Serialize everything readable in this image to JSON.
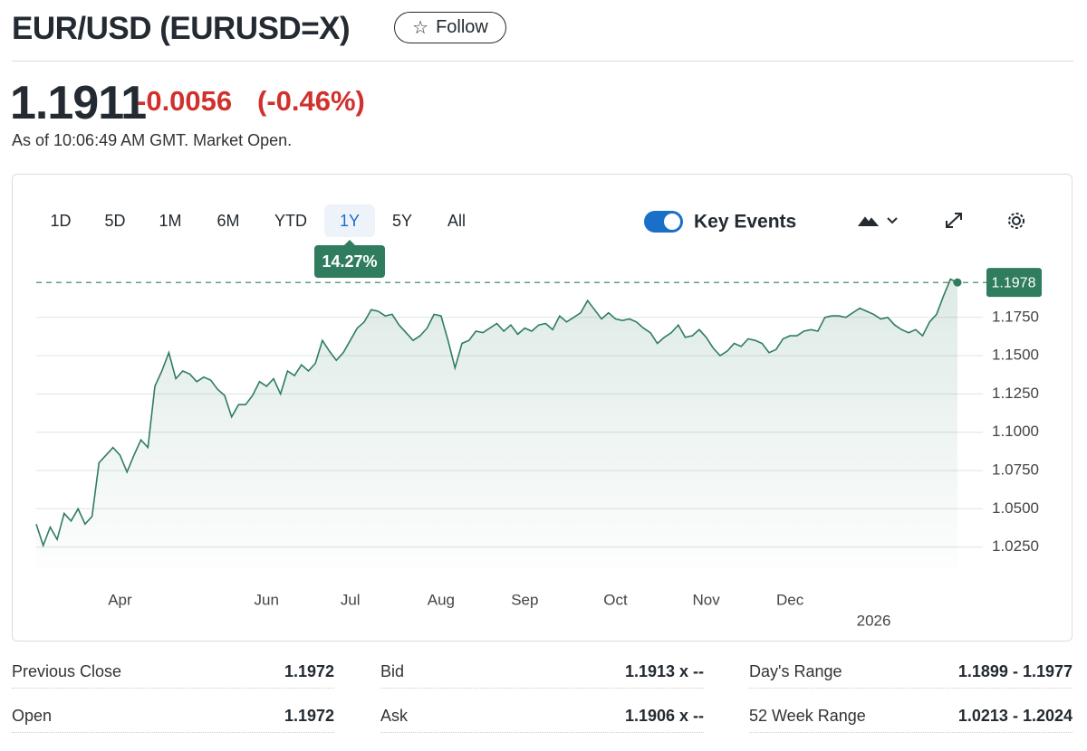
{
  "header": {
    "title": "EUR/USD (EURUSD=X)",
    "follow": "Follow"
  },
  "quote": {
    "price": "1.1911",
    "change": "-0.0056",
    "change_percent": "(-0.46%)",
    "as_of": "As of 10:06:49 AM GMT. Market Open."
  },
  "tabs": {
    "items": [
      "1D",
      "5D",
      "1M",
      "6M",
      "YTD",
      "1Y",
      "5Y",
      "All"
    ],
    "active": 5,
    "period_change": "14.27%"
  },
  "key_events": {
    "label": "Key Events",
    "on": true
  },
  "chart_data": {
    "type": "line",
    "categories": [
      null,
      null,
      null,
      null,
      null,
      null,
      null,
      null,
      null,
      null,
      null,
      null,
      "Apr",
      null,
      null,
      null,
      null,
      null,
      null,
      null,
      null,
      null,
      null,
      null,
      null,
      null,
      null,
      null,
      null,
      null,
      null,
      null,
      null,
      "Jun",
      null,
      null,
      null,
      null,
      null,
      null,
      null,
      null,
      null,
      null,
      null,
      "Jul",
      null,
      null,
      null,
      null,
      null,
      null,
      null,
      null,
      null,
      null,
      null,
      null,
      "Aug",
      null,
      null,
      null,
      null,
      null,
      null,
      null,
      null,
      null,
      null,
      null,
      "Sep",
      null,
      null,
      null,
      null,
      null,
      null,
      null,
      null,
      null,
      null,
      null,
      null,
      "Oct",
      null,
      null,
      null,
      null,
      null,
      null,
      null,
      null,
      null,
      null,
      null,
      null,
      "Nov",
      null,
      null,
      null,
      null,
      null,
      null,
      null,
      null,
      null,
      null,
      null,
      "Dec",
      null,
      null,
      null,
      null,
      null,
      null,
      null,
      null,
      null,
      null,
      null,
      "2026",
      null,
      null,
      null,
      null,
      null,
      null,
      null,
      null,
      null,
      null,
      null,
      null
    ],
    "series": [
      {
        "color": "#2f7d5e",
        "values": [
          1.04,
          1.026,
          1.038,
          1.03,
          1.047,
          1.042,
          1.05,
          1.04,
          1.045,
          1.08,
          1.085,
          1.09,
          1.085,
          1.074,
          1.085,
          1.095,
          1.09,
          1.13,
          1.14,
          1.152,
          1.135,
          1.14,
          1.138,
          1.133,
          1.136,
          1.134,
          1.128,
          1.124,
          1.11,
          1.118,
          1.118,
          1.124,
          1.133,
          1.13,
          1.135,
          1.125,
          1.14,
          1.137,
          1.144,
          1.14,
          1.145,
          1.16,
          1.153,
          1.147,
          1.152,
          1.16,
          1.168,
          1.172,
          1.18,
          1.179,
          1.176,
          1.177,
          1.17,
          1.165,
          1.16,
          1.163,
          1.168,
          1.177,
          1.176,
          1.16,
          1.142,
          1.158,
          1.16,
          1.166,
          1.165,
          1.168,
          1.171,
          1.166,
          1.17,
          1.164,
          1.168,
          1.166,
          1.17,
          1.171,
          1.167,
          1.176,
          1.172,
          1.175,
          1.178,
          1.186,
          1.18,
          1.174,
          1.178,
          1.174,
          1.173,
          1.174,
          1.172,
          1.168,
          1.165,
          1.158,
          1.162,
          1.165,
          1.17,
          1.162,
          1.163,
          1.167,
          1.162,
          1.155,
          1.15,
          1.153,
          1.158,
          1.156,
          1.161,
          1.16,
          1.158,
          1.152,
          1.154,
          1.161,
          1.163,
          1.163,
          1.166,
          1.167,
          1.166,
          1.175,
          1.176,
          1.176,
          1.175,
          1.178,
          1.181,
          1.179,
          1.177,
          1.174,
          1.175,
          1.17,
          1.167,
          1.165,
          1.167,
          1.163,
          1.172,
          1.177,
          1.189,
          1.2,
          1.1978
        ]
      }
    ],
    "ylim": [
      1.01,
      1.205
    ],
    "yticks": [
      {
        "value": 1.025,
        "label": "1.0250"
      },
      {
        "value": 1.05,
        "label": "1.0500"
      },
      {
        "value": 1.075,
        "label": "1.0750"
      },
      {
        "value": 1.1,
        "label": "1.1000"
      },
      {
        "value": 1.125,
        "label": "1.1250"
      },
      {
        "value": 1.15,
        "label": "1.1500"
      },
      {
        "value": 1.175,
        "label": "1.1750"
      }
    ],
    "reference_value": 1.1978,
    "grid": true
  },
  "stats": {
    "rows": [
      [
        {
          "label": "Previous Close",
          "value": "1.1972"
        },
        {
          "label": "Bid",
          "value": "1.1913 x --"
        },
        {
          "label": "Day's Range",
          "value": "1.1899 - 1.1977"
        }
      ],
      [
        {
          "label": "Open",
          "value": "1.1972"
        },
        {
          "label": "Ask",
          "value": "1.1906 x --"
        },
        {
          "label": "52 Week Range",
          "value": "1.0213 - 1.2024"
        }
      ]
    ]
  }
}
